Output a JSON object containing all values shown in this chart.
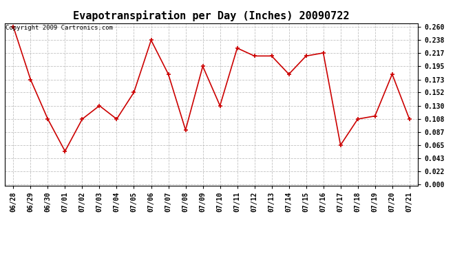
{
  "title": "Evapotranspiration per Day (Inches) 20090722",
  "copyright_text": "Copyright 2009 Cartronics.com",
  "labels": [
    "06/28",
    "06/29",
    "06/30",
    "07/01",
    "07/02",
    "07/03",
    "07/04",
    "07/05",
    "07/06",
    "07/07",
    "07/08",
    "07/09",
    "07/10",
    "07/11",
    "07/12",
    "07/13",
    "07/14",
    "07/15",
    "07/16",
    "07/17",
    "07/18",
    "07/19",
    "07/20",
    "07/21"
  ],
  "values": [
    0.26,
    0.173,
    0.108,
    0.055,
    0.108,
    0.13,
    0.108,
    0.152,
    0.238,
    0.182,
    0.09,
    0.195,
    0.13,
    0.225,
    0.212,
    0.212,
    0.182,
    0.212,
    0.217,
    0.065,
    0.108,
    0.113,
    0.182,
    0.108
  ],
  "line_color": "#cc0000",
  "marker": "+",
  "marker_color": "#cc0000",
  "marker_size": 4,
  "marker_linewidth": 1.2,
  "line_width": 1.2,
  "background_color": "#ffffff",
  "grid_color": "#bbbbbb",
  "ytick_labels": [
    0.0,
    0.022,
    0.043,
    0.065,
    0.087,
    0.108,
    0.13,
    0.152,
    0.173,
    0.195,
    0.217,
    0.238,
    0.26
  ],
  "ylim_min": -0.002,
  "ylim_max": 0.266,
  "title_fontsize": 11,
  "tick_fontsize": 7,
  "copyright_fontsize": 6.5
}
